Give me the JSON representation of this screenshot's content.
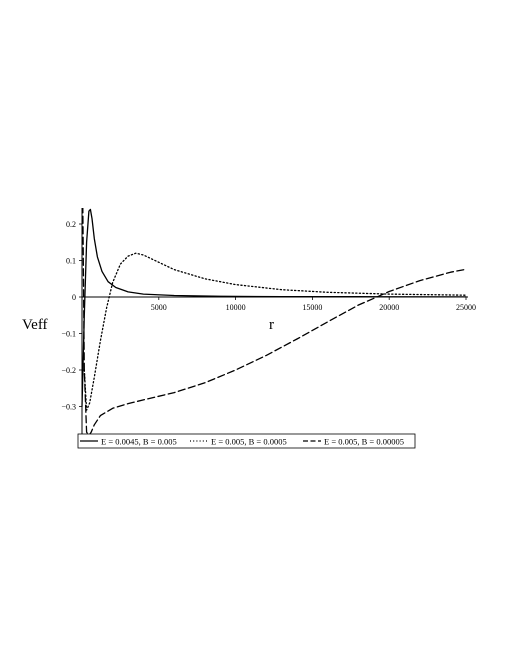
{
  "chart_data": {
    "type": "line",
    "title": "",
    "xlabel": "r",
    "ylabel": "Veff",
    "xlim": [
      0,
      25000
    ],
    "ylim": [
      -0.38,
      0.25
    ],
    "x_ticks": [
      5000,
      10000,
      15000,
      20000,
      25000
    ],
    "x_tick_labels": [
      "5000",
      "10000",
      "15000",
      "20000",
      "25000"
    ],
    "y_ticks": [
      0.2,
      0.1,
      0,
      -0.1,
      -0.2,
      -0.3
    ],
    "y_tick_labels": [
      "0.2",
      "0.1",
      "0",
      "−0.1",
      "−0.2",
      "−0.3"
    ],
    "grid": false,
    "legend_position": "bottom",
    "series": [
      {
        "name": "E = 0.0045, B = 0.005",
        "style": "solid",
        "color": "#000000",
        "x": [
          0,
          150,
          300,
          450,
          550,
          650,
          800,
          1000,
          1300,
          1700,
          2200,
          3000,
          4000,
          6000,
          9000,
          13000,
          18000,
          25000
        ],
        "y": [
          -0.3,
          -0.05,
          0.15,
          0.235,
          0.24,
          0.215,
          0.16,
          0.11,
          0.07,
          0.042,
          0.026,
          0.014,
          0.008,
          0.004,
          0.002,
          0.001,
          0.0007,
          0.0004
        ]
      },
      {
        "name": "E = 0.005, B = 0.0005",
        "style": "dotted",
        "color": "#000000",
        "x": [
          150,
          300,
          500,
          800,
          1200,
          1600,
          2000,
          2500,
          3000,
          3500,
          4000,
          5000,
          6000,
          8000,
          10000,
          13000,
          16000,
          20000,
          25000
        ],
        "y": [
          -0.2,
          -0.31,
          -0.29,
          -0.22,
          -0.12,
          -0.03,
          0.04,
          0.09,
          0.112,
          0.12,
          0.115,
          0.095,
          0.075,
          0.05,
          0.034,
          0.02,
          0.013,
          0.008,
          0.005
        ]
      },
      {
        "name": "E = 0.005, B = 0.00005",
        "style": "dashed",
        "color": "#000000",
        "x": [
          50,
          150,
          300,
          450,
          600,
          800,
          1200,
          2000,
          3000,
          4000,
          6000,
          8000,
          10000,
          12000,
          14000,
          16000,
          18000,
          19200,
          20000,
          22000,
          24000,
          25000
        ],
        "y": [
          0.25,
          -0.2,
          -0.37,
          -0.38,
          -0.37,
          -0.35,
          -0.325,
          -0.305,
          -0.292,
          -0.282,
          -0.262,
          -0.235,
          -0.2,
          -0.16,
          -0.115,
          -0.068,
          -0.022,
          0.0,
          0.015,
          0.045,
          0.068,
          0.076
        ]
      }
    ]
  }
}
